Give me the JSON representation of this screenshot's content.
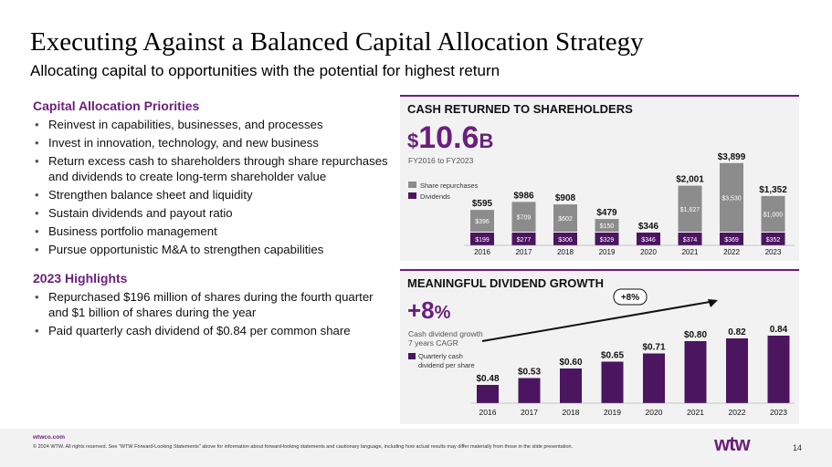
{
  "title": "Executing Against a Balanced Capital Allocation Strategy",
  "subtitle": "Allocating capital to opportunities with the potential for highest return",
  "priorities": {
    "heading": "Capital Allocation Priorities",
    "items": [
      "Reinvest in capabilities, businesses, and processes",
      "Invest in innovation, technology, and new business",
      "Return excess cash to shareholders through share repurchases and dividends to create long-term shareholder value",
      "Strengthen balance sheet and liquidity",
      "Sustain dividends and payout ratio",
      "Business portfolio management",
      "Pursue opportunistic M&A to strengthen capabilities"
    ]
  },
  "highlights": {
    "heading": "2023 Highlights",
    "items": [
      "Repurchased $196 million of shares during the fourth quarter and $1 billion of shares during the year",
      "Paid quarterly cash dividend of $0.84 per common share"
    ]
  },
  "cash_panel": {
    "heading": "CASH RETURNED TO SHAREHOLDERS",
    "big_prefix": "$",
    "big_value": "10.6",
    "big_suffix": "B",
    "period": "FY2016 to FY2023",
    "legend_repurchases": "Share repurchases",
    "legend_dividends": "Dividends"
  },
  "dividend_panel": {
    "heading": "MEANINGFUL DIVIDEND GROWTH",
    "big_value": "+8",
    "big_suffix": "%",
    "cagr_line1": "Cash dividend growth",
    "cagr_line2": "7 years CAGR",
    "legend_line1": "Quarterly cash",
    "legend_line2": "dividend per share",
    "growth_badge": "+8%"
  },
  "colors": {
    "purple": "#6b1f7c",
    "dark_purple": "#4b1560",
    "gray_bar": "#8c8c8c",
    "panel_bg": "#f2f2f2"
  },
  "chart_data": [
    {
      "type": "bar",
      "stacked": true,
      "categories": [
        "2016",
        "2017",
        "2018",
        "2019",
        "2020",
        "2021",
        "2022",
        "2023"
      ],
      "totals": [
        "$595",
        "$986",
        "$908",
        "$479",
        "$346",
        "$2,001",
        "$3,899",
        "$1,352"
      ],
      "total_values": [
        595,
        986,
        908,
        479,
        346,
        2001,
        3899,
        1352
      ],
      "series": [
        {
          "name": "Dividends",
          "values": [
            199,
            277,
            306,
            329,
            346,
            374,
            369,
            352
          ],
          "labels": [
            "$199",
            "$277",
            "$306",
            "$329",
            "$346",
            "$374",
            "$369",
            "$352"
          ]
        },
        {
          "name": "Share repurchases",
          "values": [
            396,
            709,
            602,
            150,
            0,
            1627,
            3530,
            1000
          ],
          "labels": [
            "$396",
            "$709",
            "$602",
            "$150",
            "",
            "$1,627",
            "$3,530",
            "$1,000"
          ]
        }
      ]
    },
    {
      "type": "bar",
      "categories": [
        "2016",
        "2017",
        "2018",
        "2019",
        "2020",
        "2021",
        "2022",
        "2023"
      ],
      "values": [
        0.48,
        0.53,
        0.6,
        0.65,
        0.71,
        0.8,
        0.82,
        0.84
      ],
      "labels": [
        "$0.48",
        "$0.53",
        "$0.60",
        "$0.65",
        "$0.71",
        "$0.80",
        "0.82",
        "0.84"
      ],
      "series_name": "Quarterly cash dividend per share"
    }
  ],
  "footer": {
    "site": "wtwco.com",
    "legal": "© 2024 WTW. All rights reserved. See \"WTW Forward-Looking Statements\" above for information about forward-looking statements and cautionary language, including how actual results may differ materially from those in the slide presentation.",
    "logo": "wtw",
    "page": "14"
  }
}
